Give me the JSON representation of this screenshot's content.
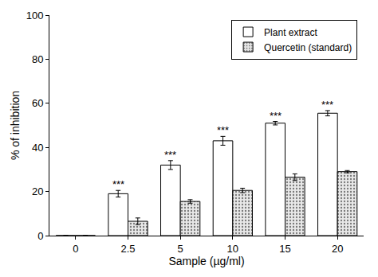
{
  "chart_data": {
    "type": "bar",
    "x_label": "Sample (µg/ml)",
    "y_label": "% of inhibition",
    "categories": [
      "0",
      "2.5",
      "5",
      "10",
      "15",
      "20"
    ],
    "series": [
      {
        "name": "Plant extract",
        "color": "#ffffff",
        "values": [
          0,
          19,
          32,
          43,
          51,
          55.5
        ],
        "errors": [
          null,
          1.5,
          2,
          2,
          0.8,
          1.2
        ]
      },
      {
        "name": "Quercetin (standard)",
        "color": "#e8e8e8",
        "marker": "dots",
        "values": [
          0,
          6.5,
          15.5,
          20.5,
          26.5,
          29
        ],
        "errors": [
          null,
          1.5,
          0.8,
          1,
          1.5,
          0.5
        ]
      }
    ],
    "annotations": [
      {
        "text": "***",
        "category": "2.5",
        "series": "Plant extract"
      },
      {
        "text": "***",
        "category": "5",
        "series": "Plant extract"
      },
      {
        "text": "***",
        "category": "10",
        "series": "Plant extract"
      },
      {
        "text": "***",
        "category": "15",
        "series": "Plant extract"
      },
      {
        "text": "***",
        "category": "20",
        "series": "Plant extract"
      }
    ],
    "ylim": [
      0,
      100
    ],
    "yticks": [
      0,
      20,
      40,
      60,
      80,
      100
    ],
    "grid": false,
    "legend": "upper right"
  }
}
